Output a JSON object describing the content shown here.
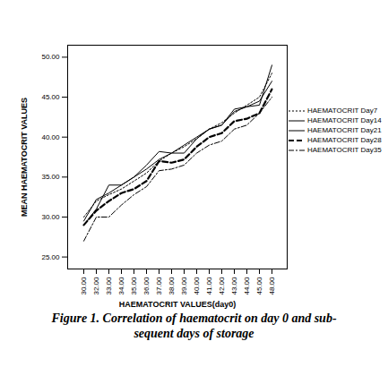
{
  "chart_data": {
    "type": "line",
    "title": "Figure 1.  Correlation of haematocrit on day 0 and sub-sequent days of storage",
    "x_label": "HAEMATOCRIT VALUES(day0)",
    "y_label": "MEAN HAEMATOCRIT VALUES",
    "categories": [
      "30.00",
      "32.00",
      "33.00",
      "34.00",
      "35.00",
      "36.00",
      "37.00",
      "38.00",
      "39.00",
      "40.00",
      "41.00",
      "42.00",
      "43.00",
      "44.00",
      "45.00",
      "48.00"
    ],
    "ylim": [
      23.5,
      51.5
    ],
    "yticks": [
      {
        "value": 25,
        "label": "25.00"
      },
      {
        "value": 30,
        "label": "30.00"
      },
      {
        "value": 35,
        "label": "35.00"
      },
      {
        "value": 40,
        "label": "40.00"
      },
      {
        "value": 45,
        "label": "45.00"
      },
      {
        "value": 50,
        "label": "50.00"
      }
    ],
    "grid": false,
    "legend": "right",
    "series": [
      {
        "name": "HAEMATOCRIT Day7",
        "color": "#000000",
        "line_style": "dotted",
        "values": [
          30,
          32,
          32.8,
          33.5,
          34.5,
          35.5,
          37,
          38,
          38.8,
          39.8,
          41,
          41.8,
          43,
          44,
          45,
          48
        ]
      },
      {
        "name": "HAEMATOCRIT Day14",
        "color": "#000000",
        "line_style": "solid",
        "values": [
          29.5,
          32.2,
          33,
          34,
          35,
          36,
          37.2,
          38,
          39,
          40,
          41,
          41.5,
          43.2,
          43.8,
          44.5,
          47
        ]
      },
      {
        "name": "HAEMATOCRIT Day21",
        "color": "#000000",
        "line_style": "solid",
        "values": [
          29,
          31,
          34,
          34,
          35,
          36.5,
          38.2,
          38,
          38,
          39.8,
          41,
          41.5,
          43.5,
          43.8,
          44,
          49
        ]
      },
      {
        "name": "HAEMATOCRIT Day28",
        "color": "#000000",
        "line_style": "dashed",
        "values": [
          29,
          30.8,
          32,
          33,
          33.5,
          34.5,
          37,
          36.8,
          37.2,
          38.8,
          40,
          40.5,
          42,
          42.3,
          43,
          46
        ]
      },
      {
        "name": "HAEMATOCRIT Day35",
        "color": "#000000",
        "line_style": "dashdot",
        "values": [
          27,
          30,
          30,
          31.5,
          32.8,
          33.8,
          35.8,
          36,
          36.5,
          38,
          39,
          39.5,
          41,
          41.5,
          43,
          45
        ]
      }
    ]
  }
}
